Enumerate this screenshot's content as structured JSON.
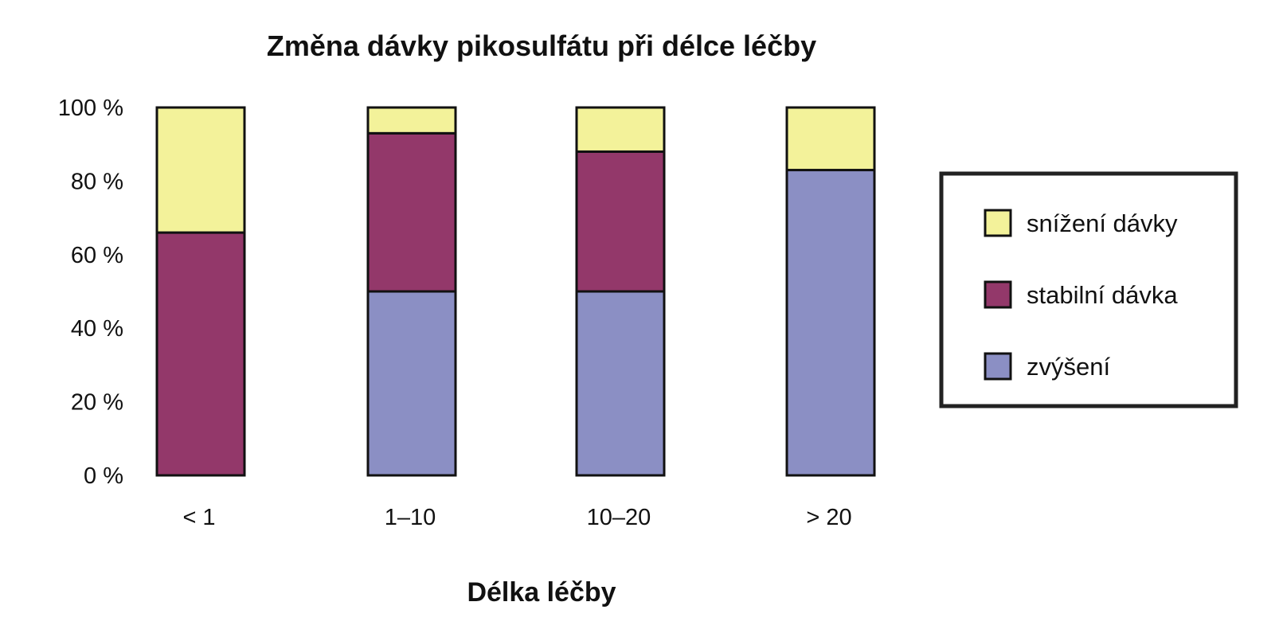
{
  "chart_data": {
    "type": "bar",
    "stacked": true,
    "title": "Změna dávky pikosulfátu při délce léčby",
    "xlabel": "Délka léčby",
    "ylabel": "",
    "ylim": [
      0,
      100
    ],
    "y_ticks": [
      "0 %",
      "20 %",
      "40 %",
      "60 %",
      "80 %",
      "100 %"
    ],
    "y_tick_values": [
      0,
      20,
      40,
      60,
      80,
      100
    ],
    "categories": [
      "< 1",
      "1–10",
      "10–20",
      "> 20"
    ],
    "series": [
      {
        "name": "zvýšení",
        "color": "#8b8fc4",
        "values": [
          0,
          50,
          50,
          83
        ]
      },
      {
        "name": "stabilní dávka",
        "color": "#93386a",
        "values": [
          66,
          43,
          38,
          0
        ]
      },
      {
        "name": "snížení dávky",
        "color": "#f3f29a",
        "values": [
          34,
          7,
          12,
          17
        ]
      }
    ],
    "legend_order": [
      "snížení dávky",
      "stabilní dávka",
      "zvýšení"
    ],
    "legend_position": "right",
    "grid": false
  }
}
